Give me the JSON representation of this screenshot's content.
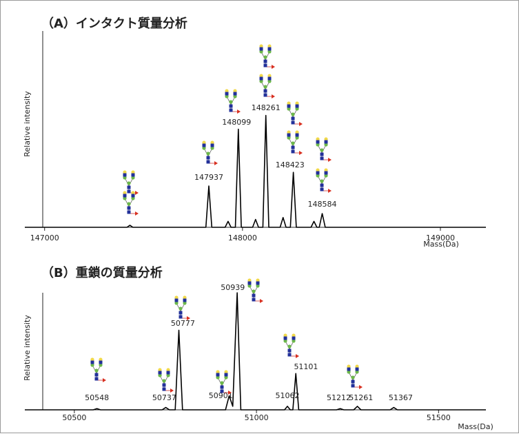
{
  "chart_data": [
    {
      "type": "line",
      "title": "（A）インタクト質量分析",
      "y_label": "Relative intensity",
      "x_label": "Mass(Da)",
      "color": "#000000",
      "xlim": [
        146900,
        149230
      ],
      "ylim": [
        0,
        100
      ],
      "xticks": [
        147000,
        148000,
        149000
      ],
      "x": [
        146900,
        147416,
        147431,
        147446,
        147815,
        147830,
        147845,
        147912,
        147927,
        147942,
        147964,
        147979,
        147994,
        148051,
        148066,
        148081,
        148103,
        148118,
        148133,
        148190,
        148205,
        148220,
        148242,
        148257,
        148272,
        148346,
        148361,
        148376,
        148388,
        148403,
        148418,
        149230
      ],
      "values": [
        0,
        0,
        1,
        0,
        0,
        21,
        0,
        0,
        3,
        0,
        0,
        50,
        0,
        0,
        4,
        0,
        0,
        57,
        0,
        0,
        5,
        0,
        0,
        28,
        0,
        0,
        3,
        0,
        0,
        7,
        0,
        0
      ],
      "annotations": [
        {
          "label": "147937",
          "x": 147830
        },
        {
          "label": "148099",
          "x": 147970
        },
        {
          "label": "148261",
          "x": 148118
        },
        {
          "label": "148423",
          "x": 148240
        },
        {
          "label": "148584",
          "x": 148403
        }
      ]
    },
    {
      "type": "line",
      "title": "（B）重鎖の質量分析",
      "y_label": "Relative intensity",
      "x_label": "Mass(Da)",
      "color": "#000000",
      "xlim": [
        50364,
        51630
      ],
      "ylim": [
        0,
        100
      ],
      "xticks": [
        50500,
        51000,
        51500
      ],
      "x": [
        50364,
        50552,
        50562,
        50572,
        50741,
        50751,
        50761,
        50777,
        50787,
        50797,
        50915,
        50925,
        50935,
        50947,
        50957,
        51077,
        51085,
        51093,
        51100,
        51108,
        51116,
        51220,
        51230,
        51240,
        51267,
        51277,
        51287,
        51367,
        51377,
        51387,
        51630
      ],
      "values": [
        0,
        0,
        1,
        0,
        0,
        2,
        0,
        0,
        68,
        0,
        0,
        12,
        3,
        100,
        0,
        0,
        3,
        0,
        0,
        31,
        0,
        0,
        1,
        0,
        0,
        3,
        0,
        0,
        2,
        0,
        0
      ],
      "annotations": [
        {
          "label": "50548",
          "x": 50562
        },
        {
          "label": "50737",
          "x": 50747
        },
        {
          "label": "50777",
          "x": 50798
        },
        {
          "label": "50901",
          "x": 50902
        },
        {
          "label": "50939",
          "x": 50935
        },
        {
          "label": "51062",
          "x": 51085
        },
        {
          "label": "51101",
          "x": 51136
        },
        {
          "label": "51212",
          "x": 51226
        },
        {
          "label": "51261",
          "x": 51287
        },
        {
          "label": "51367",
          "x": 51396
        }
      ]
    }
  ]
}
